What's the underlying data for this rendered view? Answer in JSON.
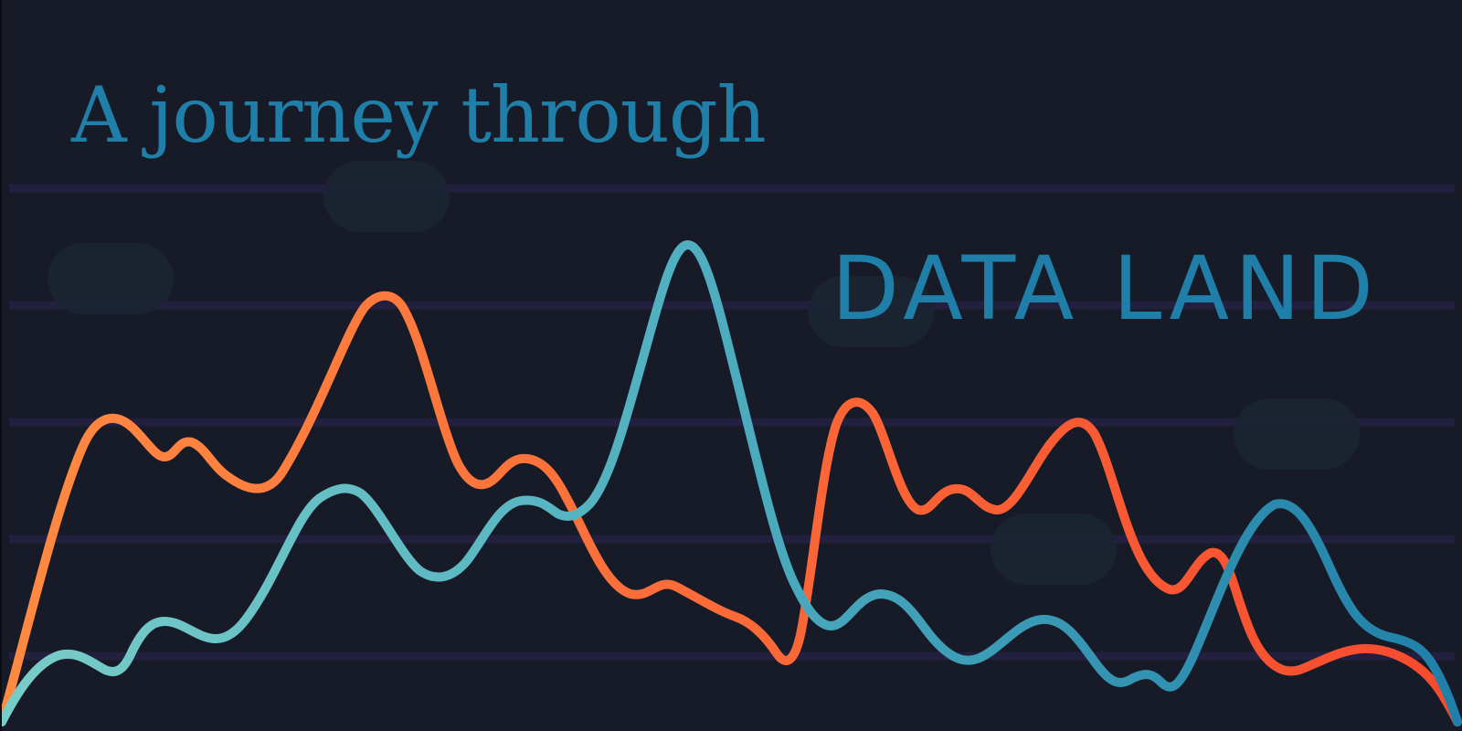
{
  "heading": {
    "line1": "A journey through",
    "line2": "DATA LAND"
  },
  "colors": {
    "background": "#171b27",
    "gridline": "#231f3e",
    "blob": "#1b2532",
    "title": "#1f7fa8",
    "orange_series_start": "#ff8a42",
    "orange_series_end": "#f64a2e",
    "teal_series_start": "#79cdc8",
    "teal_series_end": "#1f7fa8"
  }
}
